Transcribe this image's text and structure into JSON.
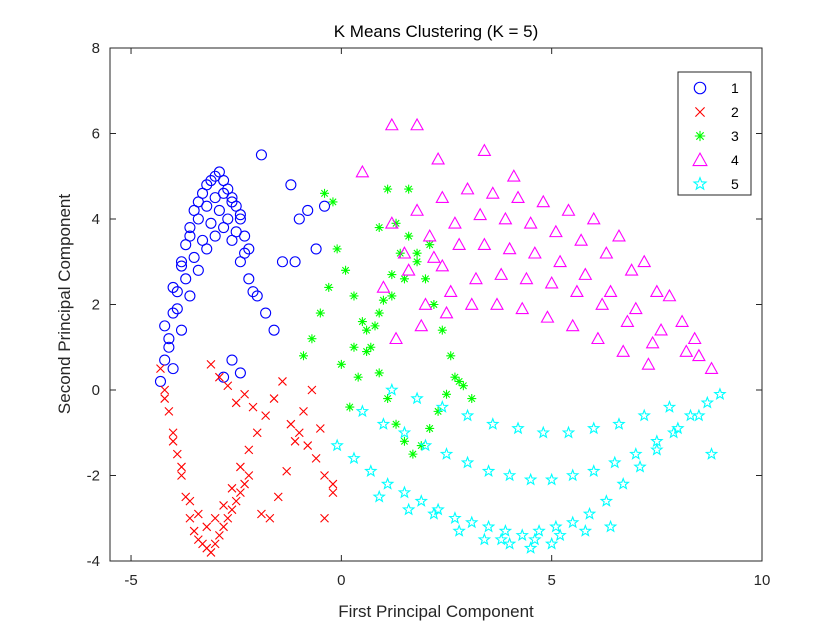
{
  "chart_data": {
    "type": "scatter",
    "title": "K Means Clustering (K = 5)",
    "xlabel": "First Principal Component",
    "ylabel": "Second Principal Component",
    "xlim": [
      -5.5,
      10
    ],
    "ylim": [
      -4,
      8
    ],
    "xticks": [
      -5,
      0,
      5,
      10
    ],
    "xtick_labels": [
      "-5",
      "0",
      "5",
      "10"
    ],
    "yticks": [
      -4,
      -2,
      0,
      2,
      4,
      6,
      8
    ],
    "ytick_labels": [
      "-4",
      "-2",
      "0",
      "2",
      "4",
      "6",
      "8"
    ],
    "grid": false,
    "legend_position": "top-right",
    "series": [
      {
        "name": "1",
        "marker": "circle",
        "color": "#0000ff",
        "x": [
          -4.3,
          -4.2,
          -4.1,
          -4.0,
          -3.9,
          -3.8,
          -3.7,
          -3.6,
          -3.5,
          -3.4,
          -3.3,
          -3.2,
          -3.1,
          -3.0,
          -2.9,
          -2.8,
          -2.7,
          -2.6,
          -2.5,
          -2.4,
          -2.3,
          -2.2,
          -4.2,
          -4.0,
          -3.8,
          -3.6,
          -3.4,
          -3.2,
          -3.0,
          -2.8,
          -2.6,
          -2.4,
          -4.1,
          -3.9,
          -3.7,
          -3.5,
          -3.3,
          -3.1,
          -2.9,
          -2.7,
          -2.5,
          -2.3,
          -4.0,
          -3.8,
          -3.6,
          -3.4,
          -3.2,
          -3.0,
          -2.8,
          -2.6,
          -2.4,
          -2.2,
          -2.0,
          -1.8,
          -1.6,
          -1.2,
          -1.0,
          -0.8,
          -0.6,
          -0.4,
          -1.1,
          -1.4,
          -1.9,
          -2.1,
          -2.6,
          -2.4,
          -2.8
        ],
        "y": [
          0.2,
          0.7,
          1.2,
          1.8,
          2.3,
          2.9,
          3.4,
          3.8,
          4.2,
          4.4,
          4.6,
          4.8,
          4.9,
          5.0,
          5.1,
          4.9,
          4.7,
          4.5,
          4.3,
          4.0,
          3.6,
          3.3,
          1.5,
          2.4,
          3.0,
          3.6,
          4.0,
          4.3,
          4.5,
          4.6,
          4.4,
          4.1,
          1.0,
          1.9,
          2.6,
          3.1,
          3.5,
          3.9,
          4.2,
          4.0,
          3.7,
          3.2,
          0.5,
          1.4,
          2.2,
          2.8,
          3.3,
          3.6,
          3.8,
          3.5,
          3.0,
          2.6,
          2.2,
          1.8,
          1.4,
          4.8,
          4.0,
          4.2,
          3.3,
          4.3,
          3.0,
          3.0,
          5.5,
          2.3,
          0.7,
          0.4,
          0.3
        ]
      },
      {
        "name": "2",
        "marker": "x",
        "color": "#ff0000",
        "x": [
          -4.3,
          -4.2,
          -4.1,
          -4.0,
          -3.9,
          -3.8,
          -3.7,
          -3.6,
          -3.5,
          -3.4,
          -3.3,
          -3.2,
          -3.1,
          -3.0,
          -2.9,
          -2.8,
          -2.7,
          -2.6,
          -2.5,
          -2.4,
          -2.3,
          -2.2,
          -4.2,
          -4.0,
          -3.8,
          -3.6,
          -3.4,
          -3.2,
          -3.0,
          -2.8,
          -2.6,
          -2.4,
          -2.2,
          -2.0,
          -1.8,
          -1.6,
          -1.4,
          -1.2,
          -1.0,
          -0.8,
          -0.6,
          -0.4,
          -0.2,
          -1.9,
          -1.7,
          -1.5,
          -1.3,
          -1.1,
          -0.9,
          -0.7,
          -0.5,
          -3.1,
          -2.9,
          -2.7,
          -2.5,
          -2.3,
          -2.1,
          -0.4,
          -0.2
        ],
        "y": [
          0.5,
          0.0,
          -0.5,
          -1.0,
          -1.5,
          -2.0,
          -2.5,
          -3.0,
          -3.3,
          -3.5,
          -3.6,
          -3.7,
          -3.8,
          -3.6,
          -3.4,
          -3.2,
          -3.0,
          -2.8,
          -2.6,
          -2.4,
          -2.2,
          -2.0,
          -0.2,
          -1.2,
          -1.8,
          -2.6,
          -2.9,
          -3.2,
          -3.0,
          -2.7,
          -2.3,
          -1.8,
          -1.4,
          -1.0,
          -0.6,
          -0.2,
          0.2,
          -0.8,
          -1.0,
          -1.3,
          -1.6,
          -2.0,
          -2.4,
          -2.9,
          -3.0,
          -2.5,
          -1.9,
          -1.2,
          -0.5,
          0.0,
          -0.9,
          0.6,
          0.3,
          0.1,
          -0.3,
          -0.1,
          -0.4,
          -3.0,
          -2.2
        ]
      },
      {
        "name": "3",
        "marker": "asterisk",
        "color": "#00ff00",
        "x": [
          -0.9,
          -0.7,
          -0.5,
          -0.3,
          -0.1,
          0.1,
          0.3,
          0.5,
          0.7,
          0.9,
          1.1,
          1.3,
          1.5,
          1.7,
          1.9,
          2.1,
          2.3,
          2.5,
          2.7,
          2.9,
          3.1,
          0.2,
          0.4,
          0.6,
          0.8,
          1.0,
          1.2,
          1.4,
          1.6,
          1.8,
          2.0,
          2.2,
          2.4,
          2.6,
          2.8,
          0.0,
          0.3,
          0.6,
          0.9,
          1.2,
          1.5,
          1.8,
          2.1,
          -0.4,
          -0.2,
          1.1,
          1.6,
          0.9,
          1.3
        ],
        "y": [
          0.8,
          1.2,
          1.8,
          2.4,
          3.3,
          2.8,
          2.2,
          1.6,
          1.0,
          0.4,
          -0.2,
          -0.8,
          -1.2,
          -1.5,
          -1.3,
          -0.9,
          -0.5,
          -0.1,
          0.3,
          0.1,
          -0.2,
          -0.4,
          0.3,
          0.9,
          1.5,
          2.1,
          2.7,
          3.2,
          3.6,
          3.2,
          2.6,
          2.0,
          1.4,
          0.8,
          0.2,
          0.6,
          1.0,
          1.4,
          1.8,
          2.2,
          2.6,
          3.0,
          3.4,
          4.6,
          4.4,
          4.7,
          4.7,
          3.8,
          3.9
        ]
      },
      {
        "name": "4",
        "marker": "triangle",
        "color": "#ff00ff",
        "x": [
          1.2,
          1.8,
          2.4,
          3.0,
          3.6,
          4.2,
          4.8,
          5.4,
          6.0,
          6.6,
          7.2,
          7.8,
          8.4,
          1.5,
          2.1,
          2.7,
          3.3,
          3.9,
          4.5,
          5.1,
          5.7,
          6.3,
          6.9,
          7.5,
          8.1,
          1.0,
          1.6,
          2.2,
          2.8,
          3.4,
          4.0,
          4.6,
          5.2,
          5.8,
          6.4,
          7.0,
          7.6,
          8.2,
          8.8,
          2.0,
          2.6,
          3.2,
          3.8,
          4.4,
          5.0,
          5.6,
          6.2,
          6.8,
          7.4,
          1.3,
          1.9,
          2.5,
          3.1,
          3.7,
          4.3,
          4.9,
          5.5,
          6.1,
          6.7,
          7.3,
          8.5,
          1.2,
          1.8,
          2.3,
          0.5,
          2.4,
          3.4,
          4.1
        ],
        "y": [
          3.9,
          4.2,
          4.5,
          4.7,
          4.6,
          4.5,
          4.4,
          4.2,
          4.0,
          3.6,
          3.0,
          2.2,
          1.2,
          3.2,
          3.6,
          3.9,
          4.1,
          4.0,
          3.9,
          3.7,
          3.5,
          3.2,
          2.8,
          2.3,
          1.6,
          2.4,
          2.8,
          3.1,
          3.4,
          3.4,
          3.3,
          3.2,
          3.0,
          2.7,
          2.3,
          1.9,
          1.4,
          0.9,
          0.5,
          2.0,
          2.3,
          2.6,
          2.7,
          2.6,
          2.5,
          2.3,
          2.0,
          1.6,
          1.1,
          1.2,
          1.5,
          1.8,
          2.0,
          2.0,
          1.9,
          1.7,
          1.5,
          1.2,
          0.9,
          0.6,
          0.8,
          6.2,
          6.2,
          5.4,
          5.1,
          2.9,
          5.6,
          5.0
        ]
      },
      {
        "name": "5",
        "marker": "pentagram",
        "color": "#00ffff",
        "x": [
          -0.1,
          0.3,
          0.7,
          1.1,
          1.5,
          1.9,
          2.3,
          2.7,
          3.1,
          3.5,
          3.9,
          4.3,
          4.7,
          5.1,
          5.5,
          5.9,
          6.3,
          6.7,
          7.1,
          7.5,
          7.9,
          8.3,
          8.7,
          9.0,
          0.5,
          1.0,
          1.5,
          2.0,
          2.5,
          3.0,
          3.5,
          4.0,
          4.5,
          5.0,
          5.5,
          6.0,
          6.5,
          7.0,
          7.5,
          8.0,
          8.5,
          1.2,
          1.8,
          2.4,
          3.0,
          3.6,
          4.2,
          4.8,
          5.4,
          6.0,
          6.6,
          7.2,
          7.8,
          8.8,
          0.9,
          1.6,
          2.2,
          2.8,
          3.4,
          4.0,
          4.6,
          5.2,
          5.8,
          6.4,
          4.5,
          5.0,
          3.8
        ],
        "y": [
          -1.3,
          -1.6,
          -1.9,
          -2.2,
          -2.4,
          -2.6,
          -2.8,
          -3.0,
          -3.1,
          -3.2,
          -3.3,
          -3.4,
          -3.3,
          -3.2,
          -3.1,
          -2.9,
          -2.6,
          -2.2,
          -1.8,
          -1.4,
          -1.0,
          -0.6,
          -0.3,
          -0.1,
          -0.5,
          -0.8,
          -1.0,
          -1.3,
          -1.5,
          -1.7,
          -1.9,
          -2.0,
          -2.1,
          -2.1,
          -2.0,
          -1.9,
          -1.7,
          -1.5,
          -1.2,
          -0.9,
          -0.6,
          0.0,
          -0.2,
          -0.4,
          -0.6,
          -0.8,
          -0.9,
          -1.0,
          -1.0,
          -0.9,
          -0.8,
          -0.6,
          -0.4,
          -1.5,
          -2.5,
          -2.8,
          -2.9,
          -3.3,
          -3.5,
          -3.6,
          -3.5,
          -3.4,
          -3.3,
          -3.2,
          -3.7,
          -3.6,
          -3.5
        ]
      }
    ]
  }
}
